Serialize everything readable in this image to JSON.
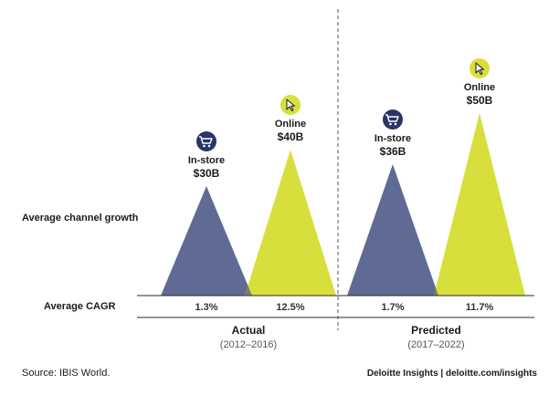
{
  "chart_data": {
    "type": "area",
    "row_labels": {
      "growth": "Average channel growth",
      "cagr": "Average CAGR"
    },
    "periods": [
      {
        "name": "Actual",
        "range": "(2012–2016)",
        "channels": [
          {
            "name": "In-store",
            "value_label": "$30B",
            "value": 30,
            "cagr": "1.3%",
            "color": "#5f6b94",
            "icon": "shopping-cart-icon"
          },
          {
            "name": "Online",
            "value_label": "$40B",
            "value": 40,
            "cagr": "12.5%",
            "color": "#d7df3c",
            "icon": "cursor-pointer-icon"
          }
        ]
      },
      {
        "name": "Predicted",
        "range": "(2017–2022)",
        "channels": [
          {
            "name": "In-store",
            "value_label": "$36B",
            "value": 36,
            "cagr": "1.7%",
            "color": "#5f6b94",
            "icon": "shopping-cart-icon"
          },
          {
            "name": "Online",
            "value_label": "$50B",
            "value": 50,
            "cagr": "11.7%",
            "color": "#d7df3c",
            "icon": "cursor-pointer-icon"
          }
        ]
      }
    ],
    "colors": {
      "in_store": "#5f6b94",
      "online": "#d7df3c",
      "overlap": "#7d8162",
      "icon_bg": "#2a3466",
      "icon_online_bg": "#d7df3c"
    }
  },
  "footer": {
    "source": "Source: IBIS World.",
    "brand": "Deloitte Insights | deloitte.com/insights"
  }
}
